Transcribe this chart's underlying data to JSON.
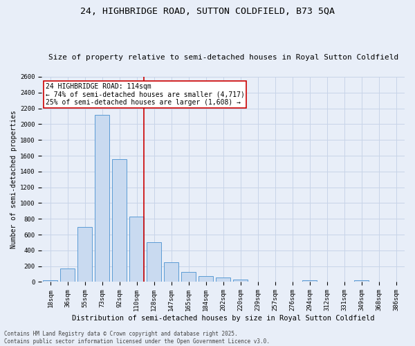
{
  "title": "24, HIGHBRIDGE ROAD, SUTTON COLDFIELD, B73 5QA",
  "subtitle": "Size of property relative to semi-detached houses in Royal Sutton Coldfield",
  "xlabel": "Distribution of semi-detached houses by size in Royal Sutton Coldfield",
  "ylabel": "Number of semi-detached properties",
  "categories": [
    "18sqm",
    "36sqm",
    "55sqm",
    "73sqm",
    "92sqm",
    "110sqm",
    "128sqm",
    "147sqm",
    "165sqm",
    "184sqm",
    "202sqm",
    "220sqm",
    "239sqm",
    "257sqm",
    "276sqm",
    "294sqm",
    "312sqm",
    "331sqm",
    "349sqm",
    "368sqm",
    "386sqm"
  ],
  "values": [
    20,
    175,
    695,
    2120,
    1555,
    825,
    505,
    250,
    125,
    75,
    55,
    30,
    0,
    0,
    0,
    20,
    0,
    0,
    20,
    0,
    0
  ],
  "bar_color": "#c9daf0",
  "bar_edge_color": "#5b9bd5",
  "vline_index": 5,
  "vline_color": "#cc0000",
  "annotation_text": "24 HIGHBRIDGE ROAD: 114sqm\n← 74% of semi-detached houses are smaller (4,717)\n25% of semi-detached houses are larger (1,608) →",
  "annotation_box_color": "#ffffff",
  "annotation_box_edge_color": "#cc0000",
  "ylim": [
    0,
    2600
  ],
  "yticks": [
    0,
    200,
    400,
    600,
    800,
    1000,
    1200,
    1400,
    1600,
    1800,
    2000,
    2200,
    2400,
    2600
  ],
  "grid_color": "#c8d4e8",
  "background_color": "#e8eef8",
  "footer_text": "Contains HM Land Registry data © Crown copyright and database right 2025.\nContains public sector information licensed under the Open Government Licence v3.0.",
  "title_fontsize": 9.5,
  "subtitle_fontsize": 8,
  "xlabel_fontsize": 7.5,
  "ylabel_fontsize": 7,
  "tick_fontsize": 6.5,
  "annotation_fontsize": 7,
  "footer_fontsize": 5.5
}
